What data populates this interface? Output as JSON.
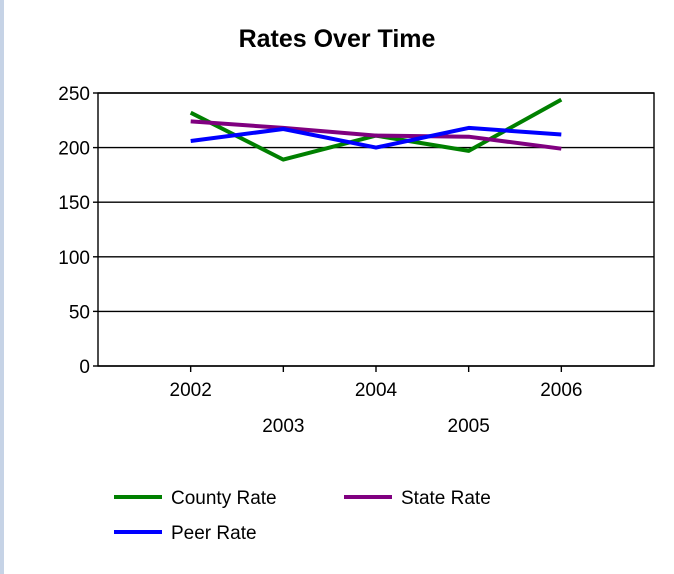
{
  "chart_data": {
    "type": "line",
    "title": "Rates Over Time",
    "xlabel": "",
    "ylabel": "",
    "categories": [
      "2002",
      "2003",
      "2004",
      "2005",
      "2006"
    ],
    "ylim": [
      0,
      250
    ],
    "yticks": [
      0,
      50,
      100,
      150,
      200,
      250
    ],
    "grid": true,
    "legend_position": "bottom",
    "series": [
      {
        "name": "County Rate",
        "color": "#008000",
        "values": [
          232,
          189,
          211,
          197,
          244
        ]
      },
      {
        "name": "State Rate",
        "color": "#800080",
        "values": [
          224,
          218,
          211,
          210,
          199
        ]
      },
      {
        "name": "Peer Rate",
        "color": "#0000ff",
        "values": [
          206,
          217,
          200,
          218,
          212
        ]
      }
    ]
  }
}
